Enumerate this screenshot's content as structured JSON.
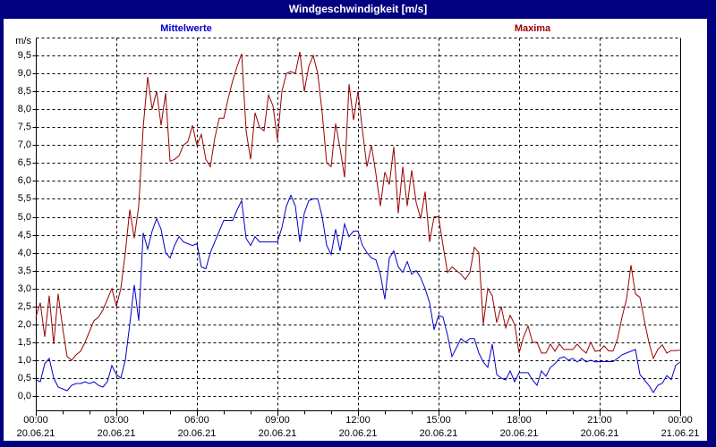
{
  "window": {
    "title": "Windgeschwindigkeit [m/s]"
  },
  "legend": {
    "mean_label": "Mittelwerte",
    "max_label": "Maxima"
  },
  "colors": {
    "frame": "#000080",
    "mean": "#0000cc",
    "max": "#990000",
    "grid": "#000000",
    "background": "#ffffff"
  },
  "axes": {
    "y_unit": "m/s",
    "y_tick_labels": [
      "9,5",
      "9,0",
      "8,5",
      "8,0",
      "7,5",
      "7,0",
      "6,5",
      "6,0",
      "5,5",
      "5,0",
      "4,5",
      "4,0",
      "3,5",
      "3,0",
      "2,5",
      "2,0",
      "1,5",
      "1,0",
      "0,5",
      "0,0"
    ],
    "x_ticks": [
      {
        "time": "00:00",
        "date": "20.06.21"
      },
      {
        "time": "03:00",
        "date": "20.06.21"
      },
      {
        "time": "06:00",
        "date": "20.06.21"
      },
      {
        "time": "09:00",
        "date": "20.06.21"
      },
      {
        "time": "12:00",
        "date": "20.06.21"
      },
      {
        "time": "15:00",
        "date": "20.06.21"
      },
      {
        "time": "18:00",
        "date": "20.06.21"
      },
      {
        "time": "21:00",
        "date": "20.06.21"
      },
      {
        "time": "00:00",
        "date": "21.06.21"
      }
    ]
  },
  "chart_data": {
    "type": "line",
    "title": "Windgeschwindigkeit [m/s]",
    "x_unit": "hours",
    "x_range": [
      0,
      24
    ],
    "sample_minutes": 10,
    "ylim": [
      -0.4,
      10.0
    ],
    "y_gridline_step": 0.5,
    "x_gridline_step_hours": 3,
    "grid": "dashed",
    "series": [
      {
        "name": "Mittelwerte",
        "color": "#0000cc",
        "values": [
          0.45,
          0.4,
          0.9,
          1.05,
          0.5,
          0.25,
          0.2,
          0.15,
          0.3,
          0.35,
          0.35,
          0.4,
          0.35,
          0.4,
          0.3,
          0.25,
          0.4,
          0.85,
          0.6,
          0.5,
          1.0,
          2.0,
          3.1,
          2.1,
          4.55,
          4.1,
          4.6,
          4.95,
          4.65,
          4.0,
          3.85,
          4.2,
          4.45,
          4.3,
          4.25,
          4.2,
          4.25,
          3.6,
          3.55,
          4.0,
          4.3,
          4.6,
          4.9,
          4.9,
          4.9,
          5.2,
          5.45,
          4.4,
          4.2,
          4.45,
          4.3,
          4.3,
          4.3,
          4.3,
          4.3,
          4.7,
          5.3,
          5.6,
          5.3,
          4.3,
          5.1,
          5.45,
          5.5,
          5.5,
          5.0,
          4.2,
          3.95,
          4.65,
          4.05,
          4.8,
          4.45,
          4.6,
          4.6,
          4.2,
          4.0,
          3.85,
          3.8,
          3.4,
          2.7,
          3.85,
          4.05,
          3.6,
          3.45,
          3.75,
          3.4,
          3.5,
          3.3,
          3.0,
          2.6,
          1.85,
          2.25,
          2.2,
          1.7,
          1.1,
          1.35,
          1.6,
          1.5,
          1.6,
          1.6,
          1.2,
          0.95,
          0.8,
          1.45,
          0.6,
          0.5,
          0.45,
          0.7,
          0.4,
          0.65,
          0.65,
          0.65,
          0.45,
          0.3,
          0.7,
          0.55,
          0.8,
          0.9,
          1.05,
          1.1,
          1.0,
          1.05,
          0.95,
          1.05,
          0.95,
          1.0,
          0.95,
          0.96,
          0.96,
          0.96,
          0.96,
          1.05,
          1.15,
          1.2,
          1.25,
          1.3,
          0.6,
          0.45,
          0.3,
          0.1,
          0.3,
          0.36,
          0.57,
          0.46,
          0.86,
          0.95
        ]
      },
      {
        "name": "Maxima",
        "color": "#990000",
        "values": [
          2.2,
          2.6,
          1.65,
          2.8,
          1.45,
          2.85,
          1.9,
          1.1,
          1.0,
          1.15,
          1.25,
          1.5,
          1.8,
          2.1,
          2.2,
          2.4,
          2.7,
          3.0,
          2.5,
          3.0,
          4.0,
          5.2,
          4.4,
          5.3,
          7.5,
          8.9,
          8.0,
          8.5,
          7.55,
          8.45,
          6.55,
          6.6,
          6.7,
          7.0,
          7.1,
          7.55,
          7.0,
          7.3,
          6.6,
          6.4,
          7.2,
          7.75,
          7.75,
          8.3,
          8.8,
          9.2,
          9.55,
          7.4,
          6.6,
          7.9,
          7.5,
          7.4,
          8.4,
          8.1,
          7.15,
          8.5,
          9.0,
          9.05,
          9.0,
          9.6,
          8.5,
          9.2,
          9.5,
          9.0,
          7.9,
          6.5,
          6.4,
          7.6,
          6.9,
          6.1,
          8.7,
          7.7,
          8.5,
          7.4,
          6.4,
          7.0,
          6.2,
          5.3,
          6.25,
          5.9,
          6.95,
          5.1,
          6.4,
          5.3,
          6.3,
          5.4,
          4.95,
          5.7,
          4.3,
          5.0,
          5.0,
          4.2,
          3.45,
          3.6,
          3.5,
          3.4,
          3.25,
          3.45,
          4.15,
          4.0,
          2.0,
          3.0,
          2.8,
          2.05,
          2.5,
          1.9,
          2.25,
          2.0,
          1.2,
          1.65,
          1.95,
          1.5,
          1.5,
          1.2,
          1.2,
          1.45,
          1.25,
          1.45,
          1.3,
          1.3,
          1.3,
          1.45,
          1.3,
          1.2,
          1.5,
          1.25,
          1.27,
          1.4,
          1.26,
          1.26,
          1.6,
          2.2,
          2.7,
          3.65,
          2.85,
          2.75,
          2.1,
          1.5,
          1.05,
          1.3,
          1.43,
          1.2,
          1.27,
          1.27,
          1.28
        ]
      }
    ]
  }
}
